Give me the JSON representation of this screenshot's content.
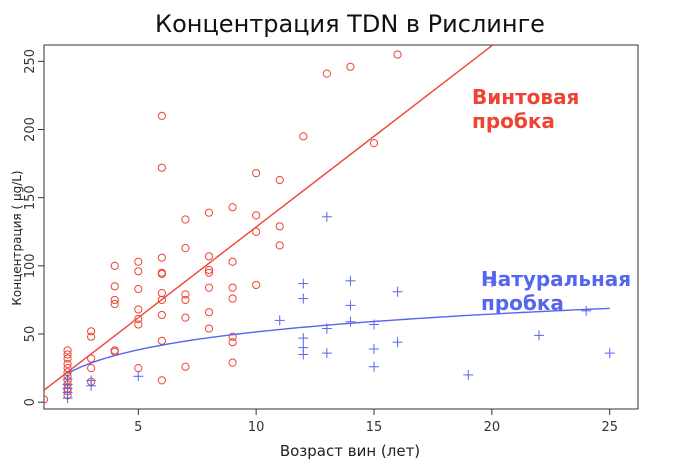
{
  "chart_data": {
    "type": "scatter",
    "title": "Концентрация TDN в Рислинге",
    "xlabel": "Возраст вин (лет)",
    "ylabel": "Концентрация ( μg/L)",
    "xlim": [
      1,
      26.2
    ],
    "ylim": [
      -5,
      262
    ],
    "xticks": [
      5,
      10,
      15,
      20,
      25
    ],
    "yticks": [
      0,
      50,
      100,
      150,
      200,
      250
    ],
    "grid": false,
    "series": [
      {
        "name": "Винтовая пробка",
        "label_lines": [
          "Винтовая",
          "пробка"
        ],
        "color": "#ee4433",
        "marker": "circle",
        "points": [
          [
            1,
            2
          ],
          [
            2,
            5
          ],
          [
            2,
            8
          ],
          [
            2,
            10
          ],
          [
            2,
            13
          ],
          [
            2,
            16
          ],
          [
            2,
            19
          ],
          [
            2,
            22
          ],
          [
            2,
            25
          ],
          [
            2,
            28
          ],
          [
            2,
            32
          ],
          [
            2,
            35
          ],
          [
            2,
            38
          ],
          [
            3,
            15
          ],
          [
            3,
            25
          ],
          [
            3,
            32
          ],
          [
            3,
            48
          ],
          [
            3,
            52
          ],
          [
            4,
            37
          ],
          [
            4,
            38
          ],
          [
            4,
            72
          ],
          [
            4,
            75
          ],
          [
            4,
            85
          ],
          [
            4,
            100
          ],
          [
            5,
            25
          ],
          [
            5,
            57
          ],
          [
            5,
            61
          ],
          [
            5,
            68
          ],
          [
            5,
            83
          ],
          [
            5,
            96
          ],
          [
            5,
            103
          ],
          [
            6,
            16
          ],
          [
            6,
            45
          ],
          [
            6,
            64
          ],
          [
            6,
            75
          ],
          [
            6,
            80
          ],
          [
            6,
            94
          ],
          [
            6,
            95
          ],
          [
            6,
            106
          ],
          [
            6,
            172
          ],
          [
            6,
            210
          ],
          [
            7,
            26
          ],
          [
            7,
            62
          ],
          [
            7,
            75
          ],
          [
            7,
            79
          ],
          [
            7,
            113
          ],
          [
            7,
            134
          ],
          [
            8,
            54
          ],
          [
            8,
            66
          ],
          [
            8,
            84
          ],
          [
            8,
            95
          ],
          [
            8,
            97
          ],
          [
            8,
            107
          ],
          [
            8,
            139
          ],
          [
            9,
            29
          ],
          [
            9,
            44
          ],
          [
            9,
            48
          ],
          [
            9,
            76
          ],
          [
            9,
            84
          ],
          [
            9,
            103
          ],
          [
            9,
            143
          ],
          [
            10,
            86
          ],
          [
            10,
            125
          ],
          [
            10,
            137
          ],
          [
            10,
            168
          ],
          [
            11,
            115
          ],
          [
            11,
            129
          ],
          [
            11,
            163
          ],
          [
            12,
            195
          ],
          [
            13,
            241
          ],
          [
            14,
            246
          ],
          [
            15,
            190
          ],
          [
            16,
            255
          ]
        ],
        "fit": {
          "kind": "linear",
          "slope": 13.3,
          "intercept": -4.5
        }
      },
      {
        "name": "Натуральная пробка",
        "label_lines": [
          "Натуральная",
          "пробка"
        ],
        "color": "#5566ee",
        "marker": "plus",
        "points": [
          [
            2,
            3
          ],
          [
            2,
            7
          ],
          [
            2,
            10
          ],
          [
            2,
            13
          ],
          [
            2,
            17
          ],
          [
            3,
            12
          ],
          [
            3,
            16
          ],
          [
            5,
            19
          ],
          [
            11,
            60
          ],
          [
            12,
            35
          ],
          [
            12,
            40
          ],
          [
            12,
            47
          ],
          [
            12,
            76
          ],
          [
            12,
            87
          ],
          [
            13,
            36
          ],
          [
            13,
            54
          ],
          [
            13,
            136
          ],
          [
            14,
            59
          ],
          [
            14,
            71
          ],
          [
            14,
            89
          ],
          [
            15,
            26
          ],
          [
            15,
            39
          ],
          [
            15,
            57
          ],
          [
            16,
            44
          ],
          [
            16,
            81
          ],
          [
            19,
            20
          ],
          [
            20,
            88
          ],
          [
            22,
            49
          ],
          [
            24,
            67
          ],
          [
            25,
            36
          ]
        ],
        "fit": {
          "kind": "log",
          "a": 8,
          "b": 18.9,
          "x_from": 2,
          "x_to": 25
        }
      }
    ]
  }
}
